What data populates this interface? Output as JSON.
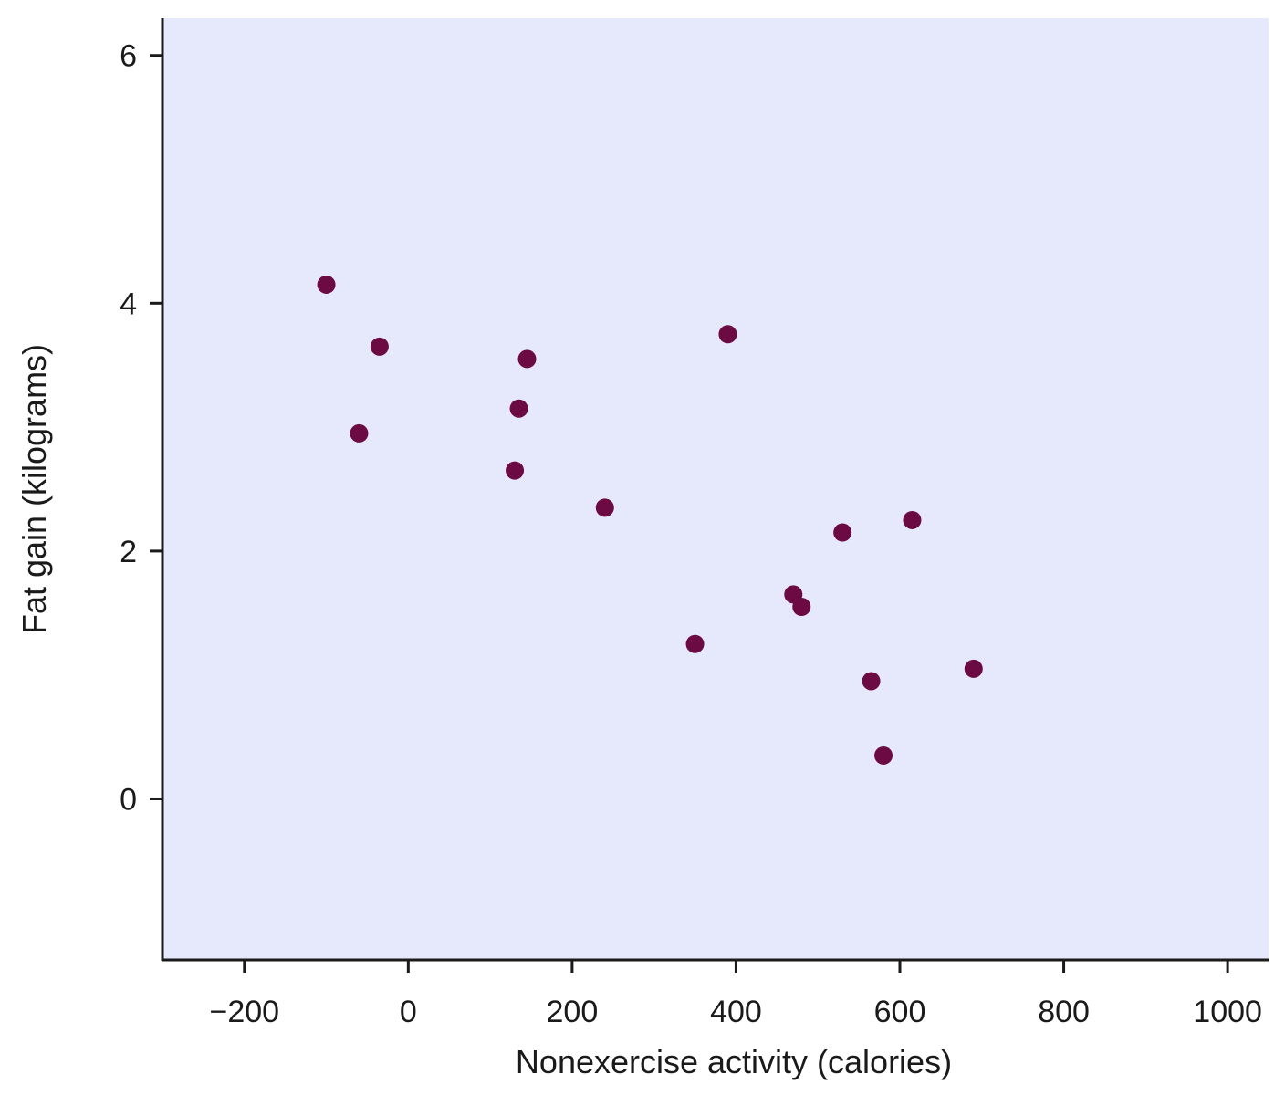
{
  "chart_data": {
    "type": "scatter",
    "xlabel": "Nonexercise activity (calories)",
    "ylabel": "Fat gain (kilograms)",
    "xlim": [
      -300,
      1050
    ],
    "ylim": [
      -1.3,
      6.3
    ],
    "x_ticks": [
      -200,
      0,
      200,
      400,
      600,
      800,
      1000
    ],
    "x_tick_labels": [
      "−200",
      "0",
      "200",
      "400",
      "600",
      "800",
      "1000"
    ],
    "y_ticks": [
      0,
      2,
      4,
      6
    ],
    "y_tick_labels": [
      "0",
      "2",
      "4",
      "6"
    ],
    "grid": false,
    "points": [
      {
        "x": -100,
        "y": 4.15
      },
      {
        "x": -35,
        "y": 3.65
      },
      {
        "x": -60,
        "y": 2.95
      },
      {
        "x": 145,
        "y": 3.55
      },
      {
        "x": 135,
        "y": 3.15
      },
      {
        "x": 130,
        "y": 2.65
      },
      {
        "x": 240,
        "y": 2.35
      },
      {
        "x": 390,
        "y": 3.75
      },
      {
        "x": 350,
        "y": 1.25
      },
      {
        "x": 470,
        "y": 1.65
      },
      {
        "x": 480,
        "y": 1.55
      },
      {
        "x": 530,
        "y": 2.15
      },
      {
        "x": 615,
        "y": 2.25
      },
      {
        "x": 565,
        "y": 0.95
      },
      {
        "x": 580,
        "y": 0.35
      },
      {
        "x": 690,
        "y": 1.05
      }
    ],
    "colors": {
      "plot_background": "#e6e8fb",
      "point": "#6b0a43",
      "axis": "#1a1a1a"
    }
  }
}
